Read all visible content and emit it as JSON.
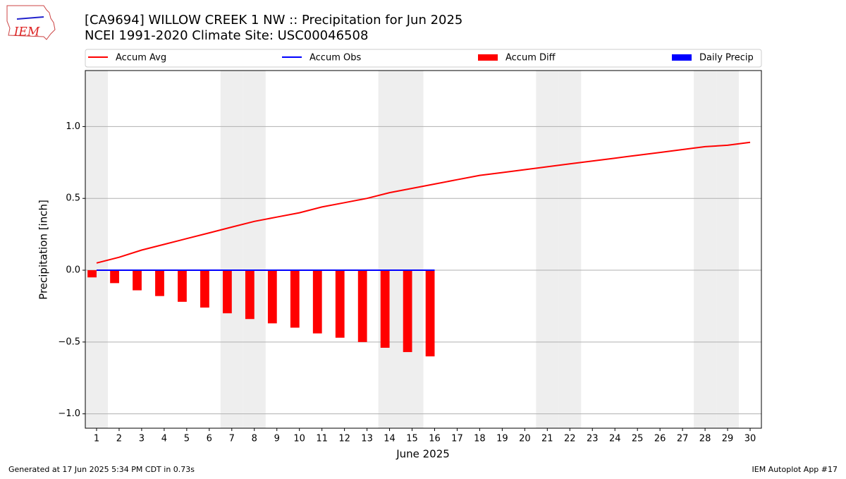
{
  "chart_data": {
    "type": "bar_line",
    "title": "[CA9694] WILLOW CREEK 1 NW :: Precipitation for Jun 2025",
    "subtitle": "NCEI 1991-2020 Climate Site: USC00046508",
    "ylabel": "Precipitation [inch]",
    "xlabel": "June 2025",
    "logo": "IEM",
    "footer_left": "Generated at 17 Jun 2025 5:34 PM CDT in 0.73s",
    "footer_right": "IEM Autoplot App #17",
    "x": [
      1,
      2,
      3,
      4,
      5,
      6,
      7,
      8,
      9,
      10,
      11,
      12,
      13,
      14,
      15,
      16,
      17,
      18,
      19,
      20,
      21,
      22,
      23,
      24,
      25,
      26,
      27,
      28,
      29,
      30
    ],
    "xlim": [
      0.5,
      30.5
    ],
    "xticks": [
      1,
      2,
      3,
      4,
      5,
      6,
      7,
      8,
      9,
      10,
      11,
      12,
      13,
      14,
      15,
      16,
      17,
      18,
      19,
      20,
      21,
      22,
      23,
      24,
      25,
      26,
      27,
      28,
      29,
      30
    ],
    "ylim": [
      -1.1,
      1.39
    ],
    "yticks": [
      {
        "value": -1.0,
        "label": "−1.0"
      },
      {
        "value": -0.5,
        "label": "−0.5"
      },
      {
        "value": 0.0,
        "label": "0.0"
      },
      {
        "value": 0.5,
        "label": "0.5"
      },
      {
        "value": 1.0,
        "label": "1.0"
      }
    ],
    "grid": true,
    "shaded_days": [
      1,
      7,
      8,
      14,
      15,
      21,
      22,
      28,
      29
    ],
    "series": [
      {
        "name": "Accum Avg",
        "kind": "line",
        "color": "#ff0000",
        "values": [
          0.05,
          0.09,
          0.14,
          0.18,
          0.22,
          0.26,
          0.3,
          0.34,
          0.37,
          0.4,
          0.44,
          0.47,
          0.5,
          0.54,
          0.57,
          0.6,
          0.63,
          0.66,
          0.68,
          0.7,
          0.72,
          0.74,
          0.76,
          0.78,
          0.8,
          0.82,
          0.84,
          0.86,
          0.87,
          0.89
        ]
      },
      {
        "name": "Accum Obs",
        "kind": "line",
        "color": "#0000ff",
        "values": [
          0,
          0,
          0,
          0,
          0,
          0,
          0,
          0,
          0,
          0,
          0,
          0,
          0,
          0,
          0,
          0,
          null,
          null,
          null,
          null,
          null,
          null,
          null,
          null,
          null,
          null,
          null,
          null,
          null,
          null
        ]
      },
      {
        "name": "Accum Diff",
        "kind": "bar",
        "offset": "left",
        "color": "#ff0000",
        "values": [
          -0.05,
          -0.09,
          -0.14,
          -0.18,
          -0.22,
          -0.26,
          -0.3,
          -0.34,
          -0.37,
          -0.4,
          -0.44,
          -0.47,
          -0.5,
          -0.54,
          -0.57,
          -0.6,
          null,
          null,
          null,
          null,
          null,
          null,
          null,
          null,
          null,
          null,
          null,
          null,
          null,
          null
        ]
      },
      {
        "name": "Daily Precip",
        "kind": "bar",
        "offset": "right",
        "color": "#0000ff",
        "values": [
          0,
          0,
          0,
          0,
          0,
          0,
          0,
          0,
          0,
          0,
          0,
          0,
          0,
          0,
          0,
          0,
          null,
          null,
          null,
          null,
          null,
          null,
          null,
          null,
          null,
          null,
          null,
          null,
          null,
          null
        ]
      }
    ]
  }
}
